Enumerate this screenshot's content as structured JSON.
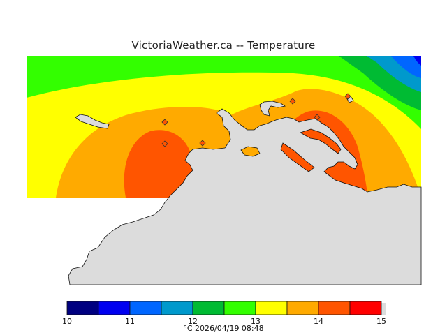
{
  "title": "VictoriaWeather.ca  --  Temperature",
  "caption": "°C  2026/04/19 08:48",
  "legend": {
    "colors": [
      "#000080",
      "#0000f0",
      "#0066ff",
      "#0099cc",
      "#00bb33",
      "#33ff00",
      "#ffff00",
      "#ffaa00",
      "#ff5500",
      "#ff0000"
    ],
    "ticks": [
      "10",
      "11",
      "12",
      "13",
      "14",
      "15"
    ]
  },
  "palette": {
    "land": "#dcdcdc",
    "green": "#33ff00",
    "green_dark": "#00bb33",
    "teal": "#0099cc",
    "blue": "#0066ff",
    "navy": "#0000f0",
    "yellow": "#ffff00",
    "orange": "#ffaa00",
    "red_orange": "#ff5500"
  }
}
